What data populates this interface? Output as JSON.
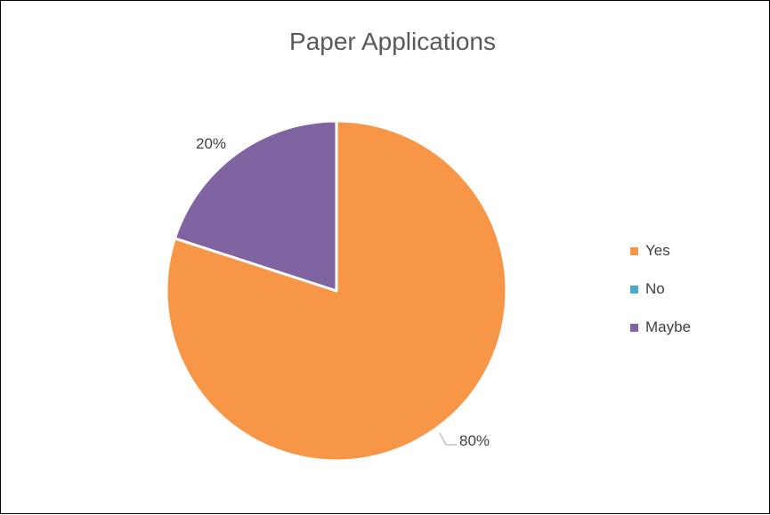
{
  "chart_data": {
    "type": "pie",
    "title": "Paper Applications",
    "categories": [
      "Yes",
      "No",
      "Maybe"
    ],
    "values": [
      80,
      0,
      20
    ],
    "data_labels": [
      "80%",
      "",
      "20%"
    ],
    "colors": [
      "#F79646",
      "#4BACC6",
      "#8064A2"
    ],
    "legend": "right"
  }
}
